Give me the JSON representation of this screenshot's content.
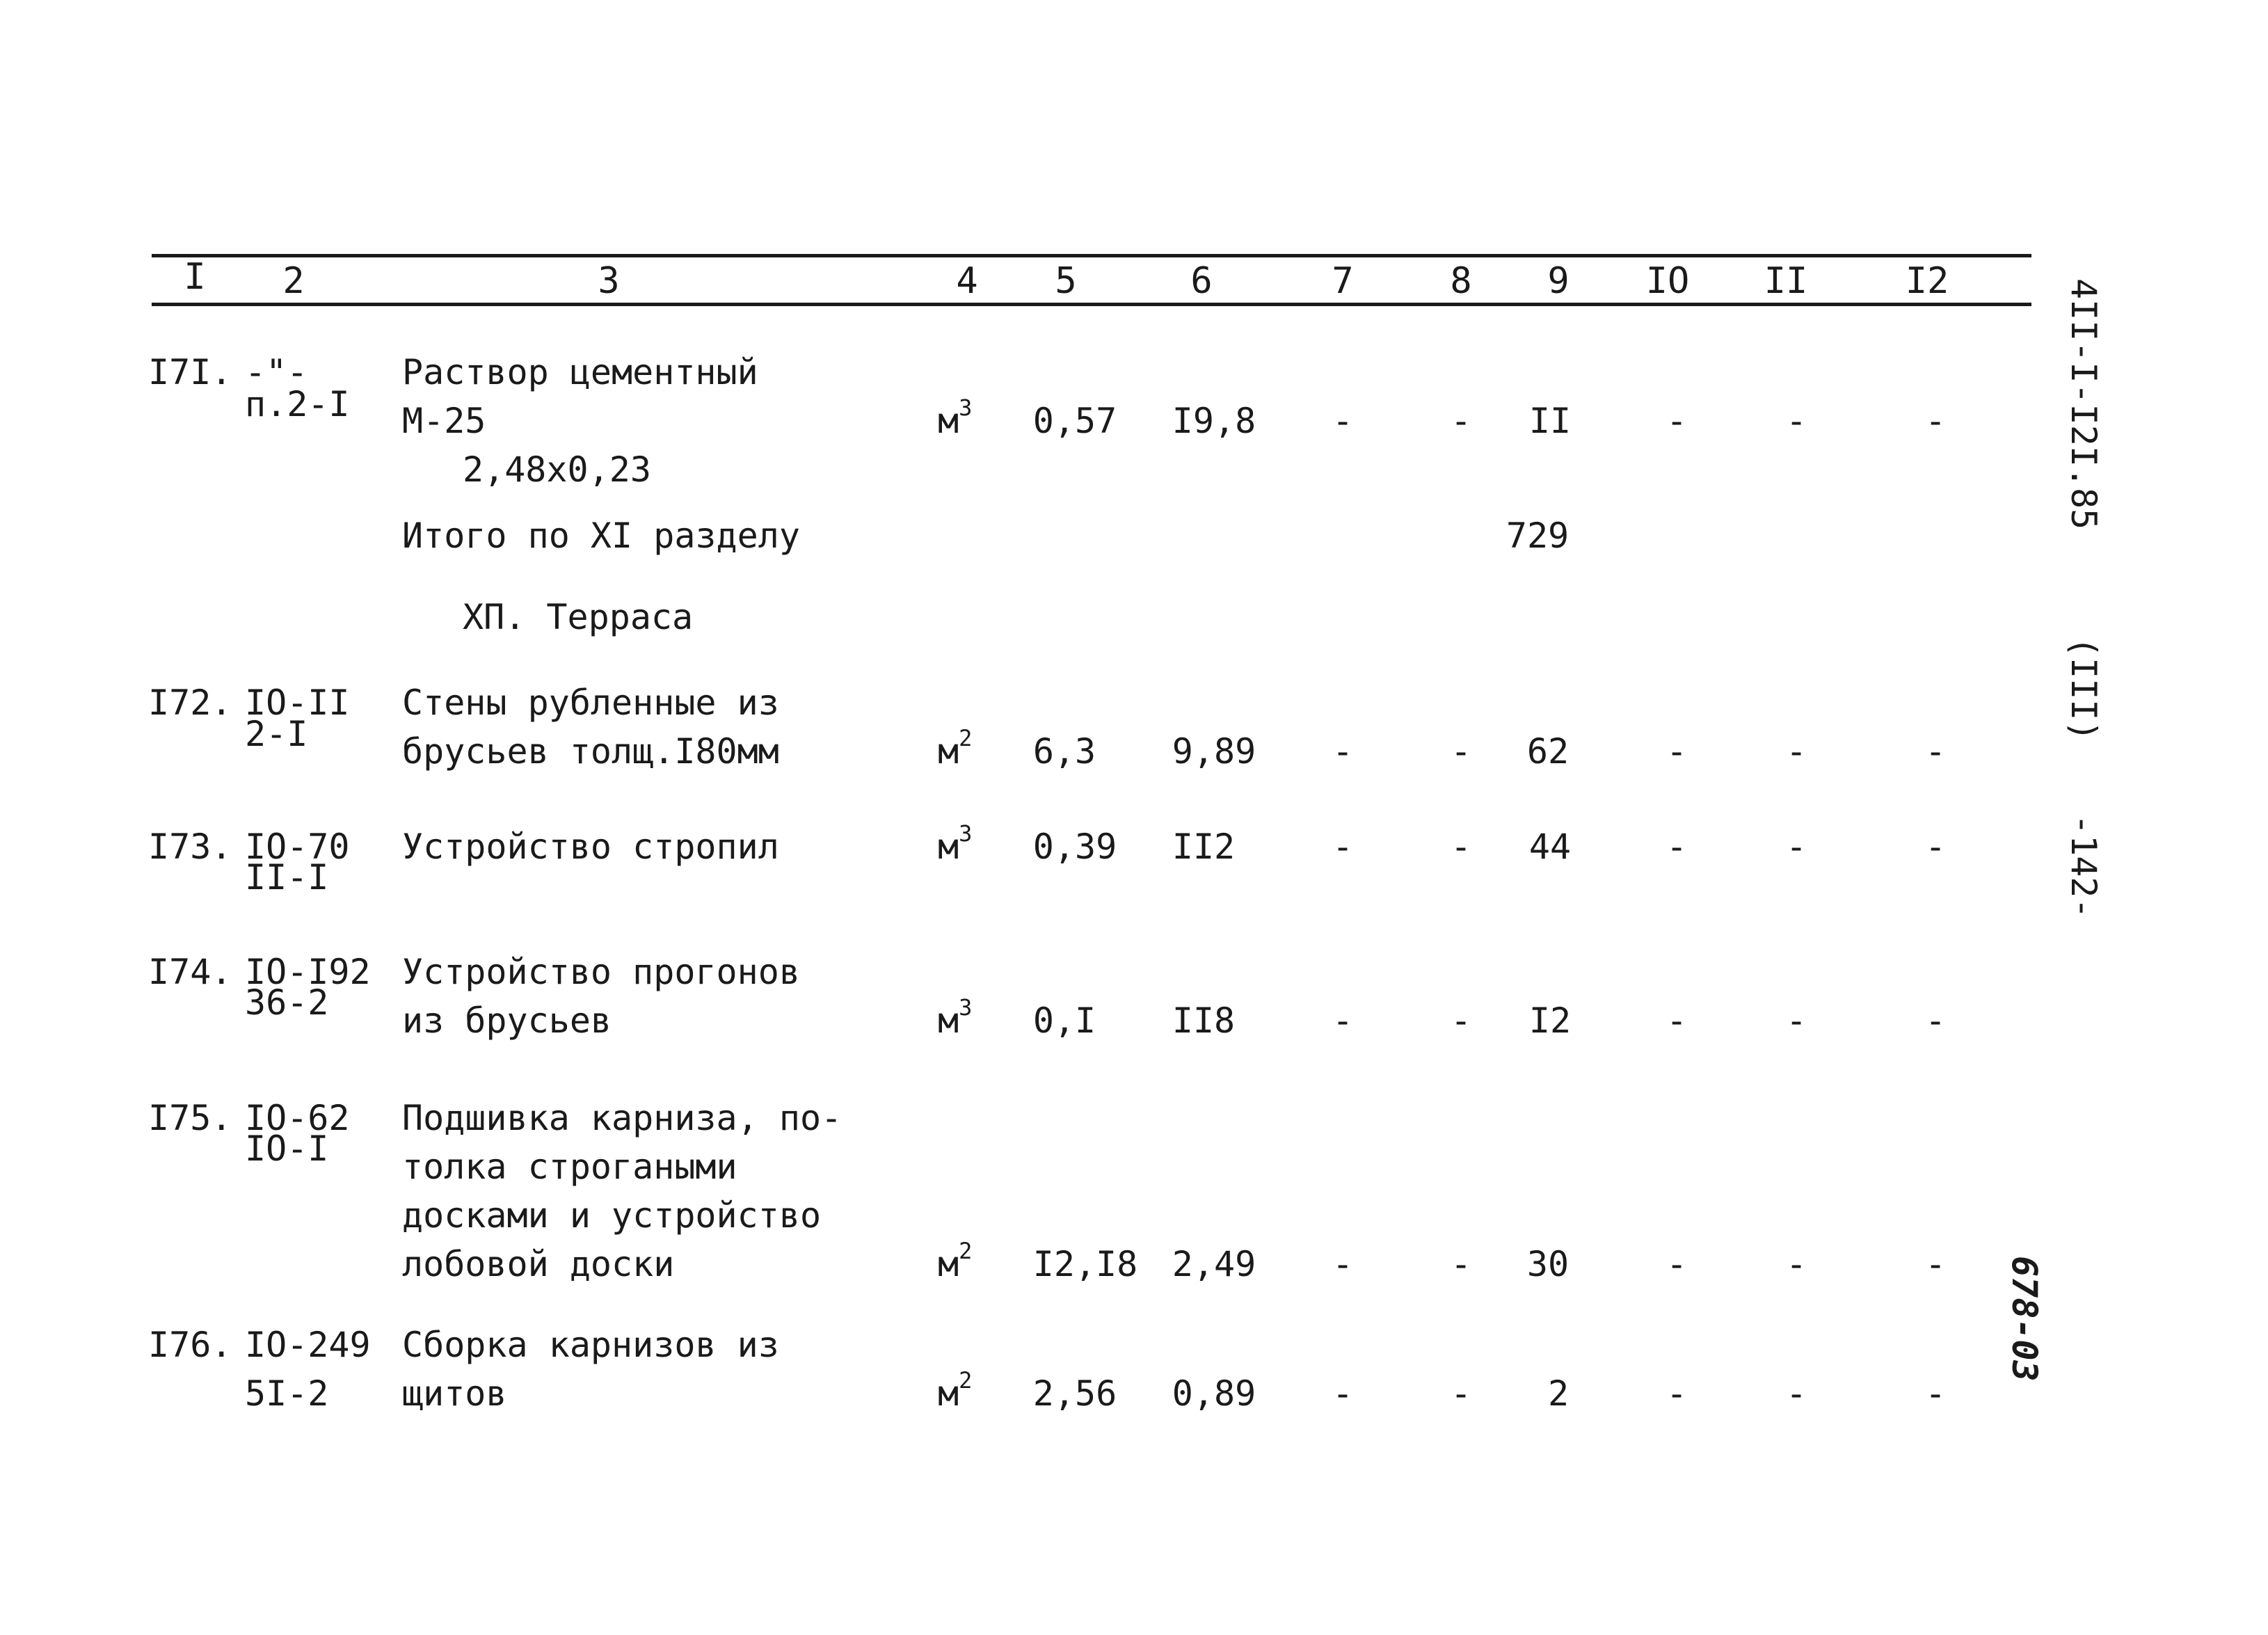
{
  "header": {
    "columns": [
      "I",
      "2",
      "3",
      "4",
      "5",
      "6",
      "7",
      "8",
      "9",
      "IO",
      "II",
      "I2"
    ]
  },
  "margin": {
    "code": "4II-I-I2I.85",
    "volume": "(III)",
    "page": "-142-",
    "stamp": "678-03"
  },
  "rows": [
    {
      "num": "I7I.",
      "code": [
        "-\"-",
        "п.2-I"
      ],
      "desc": [
        "Раствор цементный",
        "М-25"
      ],
      "extra": "2,48x0,23",
      "unit_base": "м",
      "unit_exp": "3",
      "c5": "0,57",
      "c6": "I9,8",
      "c7": "-",
      "c8": "-",
      "c9": "II",
      "c10": "-",
      "c11": "-",
      "c12": "-"
    },
    {
      "num": "I72.",
      "code": [
        "IO-II",
        "2-I"
      ],
      "desc": [
        "Стены рубленные из",
        "брусьев толщ.I80мм"
      ],
      "unit_base": "м",
      "unit_exp": "2",
      "c5": "6,3",
      "c6": "9,89",
      "c7": "-",
      "c8": "-",
      "c9": "62",
      "c10": "-",
      "c11": "-",
      "c12": "-"
    },
    {
      "num": "I73.",
      "code": [
        "IO-70",
        "II-I"
      ],
      "desc": [
        "Устройство стропил"
      ],
      "unit_base": "м",
      "unit_exp": "3",
      "c5": "0,39",
      "c6": "II2",
      "c7": "-",
      "c8": "-",
      "c9": "44",
      "c10": "-",
      "c11": "-",
      "c12": "-"
    },
    {
      "num": "I74.",
      "code": [
        "IO-I92",
        "36-2"
      ],
      "desc": [
        "Устройство прогонов",
        "из брусьев"
      ],
      "unit_base": "м",
      "unit_exp": "3",
      "c5": "0,I",
      "c6": "II8",
      "c7": "-",
      "c8": "-",
      "c9": "I2",
      "c10": "-",
      "c11": "-",
      "c12": "-"
    },
    {
      "num": "I75.",
      "code": [
        "IO-62",
        "IO-I"
      ],
      "desc": [
        "Подшивка карниза, по-",
        "толка строгаными",
        "досками и устройство",
        "лобовой доски"
      ],
      "unit_base": "м",
      "unit_exp": "2",
      "c5": "I2,I8",
      "c6": "2,49",
      "c7": "-",
      "c8": "-",
      "c9": "30",
      "c10": "-",
      "c11": "-",
      "c12": "-"
    },
    {
      "num": "I76.",
      "code": [
        "IO-249",
        "5I-2"
      ],
      "desc": [
        "Сборка карнизов из",
        "щитов"
      ],
      "unit_base": "м",
      "unit_exp": "2",
      "c5": "2,56",
      "c6": "0,89",
      "c7": "-",
      "c8": "-",
      "c9": "2",
      "c10": "-",
      "c11": "-",
      "c12": "-"
    }
  ],
  "subtotal": {
    "label": "Итого по XI разделу",
    "value": "729"
  },
  "section_title": "XП. Терраса"
}
